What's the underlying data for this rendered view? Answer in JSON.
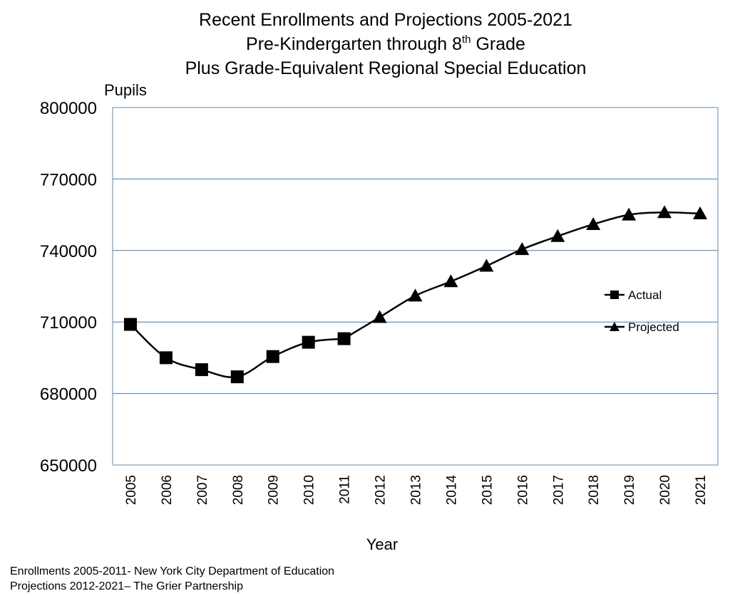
{
  "chart_data": {
    "type": "line",
    "title_lines": [
      "Recent Enrollments and Projections 2005-2021",
      "Pre-Kindergarten through 8",
      "th",
      " Grade",
      "Plus Grade-Equivalent Regional Special Education"
    ],
    "ylabel": "Pupils",
    "xlabel": "Year",
    "ylim": [
      650000,
      800000
    ],
    "y_ticks": [
      "800000",
      "770000",
      "740000",
      "710000",
      "680000",
      "650000"
    ],
    "y_tick_values": [
      800000,
      770000,
      740000,
      710000,
      680000,
      650000
    ],
    "categories": [
      "2005",
      "2006",
      "2007",
      "2008",
      "2009",
      "2010",
      "2011",
      "2012",
      "2013",
      "2014",
      "2015",
      "2016",
      "2017",
      "2018",
      "2019",
      "2020",
      "2021"
    ],
    "grid": true,
    "legend_position": "right",
    "series": [
      {
        "name": "Actual",
        "marker": "square",
        "color": "#000000",
        "values": [
          709000,
          695000,
          690000,
          687000,
          695500,
          701500,
          703000,
          null,
          null,
          null,
          null,
          null,
          null,
          null,
          null,
          null,
          null
        ]
      },
      {
        "name": "Projected",
        "marker": "triangle",
        "color": "#000000",
        "values": [
          null,
          null,
          null,
          null,
          null,
          null,
          703000,
          712000,
          721000,
          727000,
          733500,
          740500,
          746000,
          751000,
          755000,
          756000,
          755500
        ]
      }
    ]
  },
  "footer": {
    "source_enrollments": "Enrollments 2005-2011- New York City Department of Education",
    "source_projections": "Projections 2012-2021– The Grier Partnership"
  },
  "colors": {
    "plot_border": "#7f9db9",
    "grid": "#4a7ab0",
    "line": "#000000"
  }
}
